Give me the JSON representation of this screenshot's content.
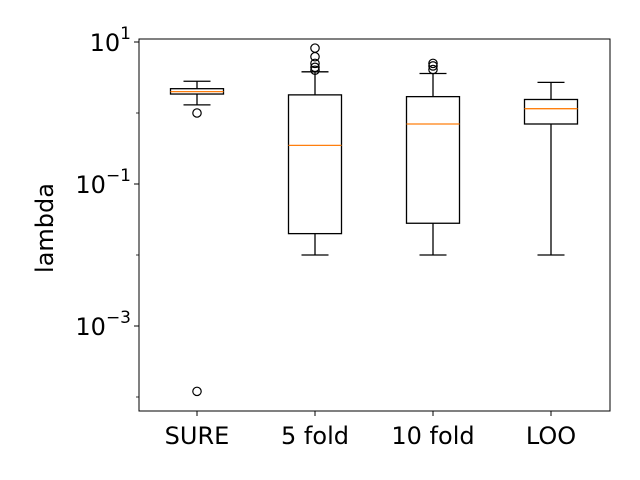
{
  "chart_data": {
    "type": "box",
    "title": "",
    "xlabel": "",
    "ylabel": "lambda",
    "yscale": "log",
    "ylim": [
      6e-05,
      12
    ],
    "yticks": [
      {
        "value": 0.001,
        "base": "10",
        "exp": "−3"
      },
      {
        "value": 0.1,
        "base": "10",
        "exp": "−1"
      },
      {
        "value": 10,
        "base": "10",
        "exp": "1"
      }
    ],
    "categories": [
      "SURE",
      "5 fold",
      "10 fold",
      "LOO"
    ],
    "boxes": [
      {
        "category": "SURE",
        "whisker_low": 1.3,
        "q1": 1.85,
        "median": 2.0,
        "q3": 2.2,
        "whisker_high": 2.8,
        "outliers": [
          1.0,
          0.00012
        ]
      },
      {
        "category": "5 fold",
        "whisker_low": 0.01,
        "q1": 0.02,
        "median": 0.35,
        "q3": 1.8,
        "whisker_high": 3.8,
        "outliers": [
          4.0,
          4.4,
          5.0,
          6.2,
          8.2
        ]
      },
      {
        "category": "10 fold",
        "whisker_low": 0.01,
        "q1": 0.028,
        "median": 0.7,
        "q3": 1.7,
        "whisker_high": 3.6,
        "outliers": [
          4.1,
          4.6,
          5.0
        ]
      },
      {
        "category": "LOO",
        "whisker_low": 0.01,
        "q1": 0.7,
        "median": 1.15,
        "q3": 1.55,
        "whisker_high": 2.7,
        "outliers": []
      }
    ],
    "grid": false,
    "colors": {
      "box": "#000000",
      "median": "#ff7f0e"
    }
  }
}
